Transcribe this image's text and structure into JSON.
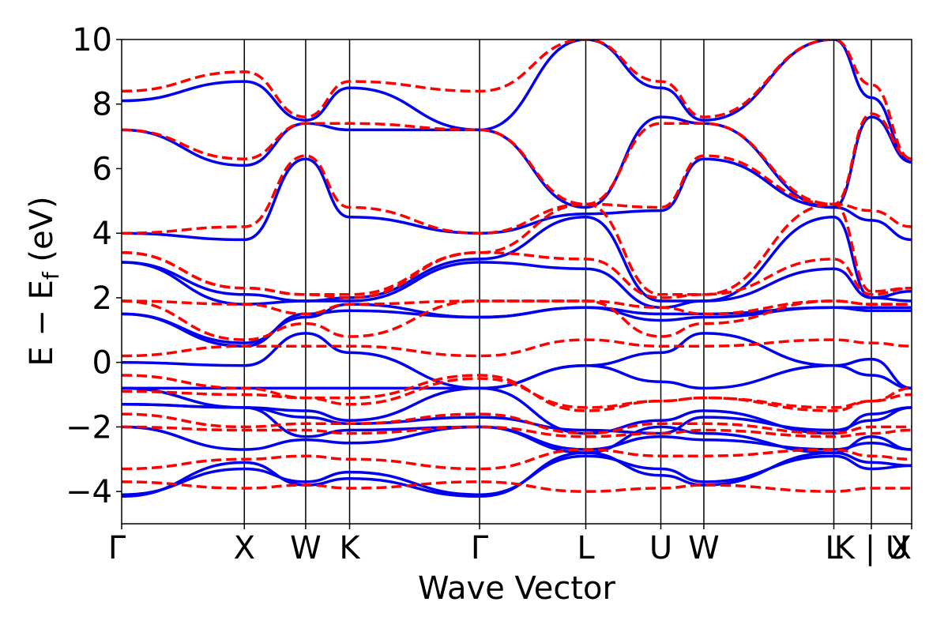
{
  "chart_data": {
    "type": "line",
    "title": "",
    "xlabel": "Wave Vector",
    "ylabel_main": "E − E",
    "ylabel_sub": "f",
    "ylabel_unit": " (eV)",
    "ylim": [
      -5,
      10
    ],
    "xlim": [
      0,
      8.63
    ],
    "yticks": [
      -4,
      -2,
      0,
      2,
      4,
      6,
      8,
      10
    ],
    "ytick_labels": [
      "−4",
      "−2",
      "0",
      "2",
      "4",
      "6",
      "8",
      "10"
    ],
    "kpoints": [
      {
        "label": "Γ",
        "x": 0
      },
      {
        "label": "X",
        "x": 1.34
      },
      {
        "label": "W",
        "x": 2.01
      },
      {
        "label": "K",
        "x": 2.49
      },
      {
        "label": "Γ",
        "x": 3.91
      },
      {
        "label": "L",
        "x": 5.07
      },
      {
        "label": "U",
        "x": 5.89
      },
      {
        "label": "W",
        "x": 6.36
      },
      {
        "label": "L",
        "x": 7.78
      },
      {
        "label": "K | U",
        "x": 8.19
      },
      {
        "label": "X",
        "x": 8.63
      }
    ],
    "series": [
      {
        "name": "bands-blue",
        "color": "#0000ee",
        "style": "solid",
        "x": [
          0,
          1.34,
          2.01,
          2.49,
          3.91,
          5.07,
          5.89,
          6.36,
          7.78,
          8.19,
          8.63
        ],
        "bands": [
          [
            -4.15,
            -3.1,
            -3.8,
            -3.6,
            -4.15,
            -2.8,
            -3.5,
            -3.8,
            -2.8,
            -3.1,
            -3.2
          ],
          [
            -4.1,
            -3.3,
            -3.7,
            -3.4,
            -4.1,
            -2.9,
            -3.3,
            -3.7,
            -2.9,
            -3.3,
            -3.2
          ],
          [
            -2.0,
            -2.7,
            -2.4,
            -2.5,
            -2.0,
            -2.7,
            -2.3,
            -2.4,
            -2.7,
            -2.5,
            -2.7
          ],
          [
            -1.3,
            -1.4,
            -2.3,
            -2.1,
            -2.0,
            -2.8,
            -2.0,
            -2.2,
            -2.8,
            -2.3,
            -2.7
          ],
          [
            -1.3,
            -1.4,
            -1.7,
            -1.9,
            -1.7,
            -2.1,
            -2.2,
            -1.7,
            -2.1,
            -1.8,
            -1.4
          ],
          [
            -0.8,
            -1.4,
            -1.5,
            -1.8,
            -0.8,
            -2.2,
            -1.8,
            -1.5,
            -2.2,
            -1.6,
            -1.4
          ],
          [
            -0.8,
            -0.8,
            -0.8,
            -0.8,
            -0.8,
            -0.1,
            -0.6,
            -0.8,
            -0.1,
            -0.4,
            -0.8
          ],
          [
            0.0,
            -0.1,
            0.9,
            0.3,
            -0.8,
            -0.1,
            0.3,
            0.9,
            -0.1,
            0.1,
            -0.8
          ],
          [
            1.5,
            0.5,
            1.5,
            1.6,
            1.4,
            1.7,
            1.5,
            1.5,
            1.7,
            1.6,
            1.6
          ],
          [
            1.5,
            0.6,
            1.4,
            1.8,
            1.4,
            1.7,
            1.3,
            1.4,
            1.7,
            1.7,
            1.7
          ],
          [
            3.1,
            1.8,
            1.9,
            1.9,
            3.1,
            2.9,
            1.7,
            1.9,
            2.9,
            2.0,
            1.9
          ],
          [
            3.1,
            2.1,
            1.9,
            2.0,
            3.2,
            4.5,
            1.9,
            1.9,
            4.5,
            2.0,
            2.2
          ],
          [
            4.0,
            3.8,
            6.3,
            4.5,
            4.0,
            4.6,
            4.7,
            6.3,
            4.8,
            4.4,
            3.8
          ],
          [
            7.2,
            6.1,
            7.4,
            7.2,
            7.2,
            4.8,
            7.6,
            7.4,
            4.8,
            7.6,
            6.2
          ],
          [
            8.1,
            8.7,
            7.5,
            8.5,
            7.2,
            10.0,
            8.5,
            7.5,
            10.0,
            8.2,
            6.2
          ]
        ]
      },
      {
        "name": "bands-red",
        "color": "#ff0000",
        "style": "dashed",
        "x": [
          0,
          1.34,
          2.01,
          2.49,
          3.91,
          5.07,
          5.89,
          6.36,
          7.78,
          8.19,
          8.63
        ],
        "bands": [
          [
            -3.7,
            -3.9,
            -3.8,
            -3.9,
            -3.7,
            -4.0,
            -3.9,
            -3.8,
            -4.0,
            -3.9,
            -3.9
          ],
          [
            -3.3,
            -3.0,
            -2.9,
            -3.0,
            -3.3,
            -2.7,
            -2.9,
            -2.9,
            -2.7,
            -2.9,
            -3.0
          ],
          [
            -2.0,
            -2.1,
            -2.1,
            -2.2,
            -2.0,
            -2.3,
            -2.2,
            -2.1,
            -2.3,
            -2.2,
            -2.1
          ],
          [
            -1.6,
            -2.0,
            -1.9,
            -1.9,
            -1.6,
            -2.2,
            -1.9,
            -1.9,
            -2.2,
            -2.0,
            -2.0
          ],
          [
            -0.9,
            -1.0,
            -1.1,
            -1.3,
            -0.5,
            -1.4,
            -1.2,
            -1.1,
            -1.4,
            -1.2,
            -1.0
          ],
          [
            -0.4,
            -0.8,
            -1.1,
            -1.1,
            -0.4,
            -1.5,
            -1.2,
            -1.1,
            -1.5,
            -1.2,
            -0.8
          ],
          [
            0.2,
            0.5,
            0.5,
            0.5,
            0.2,
            0.7,
            0.5,
            0.5,
            0.7,
            0.6,
            0.5
          ],
          [
            1.9,
            0.7,
            1.2,
            0.8,
            1.9,
            1.9,
            0.8,
            1.2,
            1.9,
            1.8,
            1.8
          ],
          [
            1.9,
            1.8,
            1.5,
            1.8,
            1.9,
            1.9,
            1.7,
            1.5,
            1.9,
            1.8,
            1.8
          ],
          [
            3.4,
            2.3,
            2.1,
            2.0,
            3.4,
            3.2,
            2.0,
            2.1,
            3.2,
            2.1,
            2.3
          ],
          [
            3.4,
            2.3,
            2.1,
            2.1,
            3.4,
            4.9,
            2.1,
            2.1,
            4.9,
            2.2,
            2.3
          ],
          [
            4.0,
            4.2,
            6.4,
            4.8,
            4.0,
            4.9,
            4.8,
            6.4,
            4.9,
            4.7,
            4.2
          ],
          [
            7.2,
            6.3,
            7.4,
            7.4,
            7.2,
            4.9,
            7.4,
            7.4,
            4.9,
            7.7,
            6.3
          ],
          [
            8.4,
            9.0,
            7.6,
            8.7,
            8.4,
            10.0,
            8.7,
            7.6,
            10.0,
            8.6,
            6.3
          ]
        ]
      }
    ]
  }
}
